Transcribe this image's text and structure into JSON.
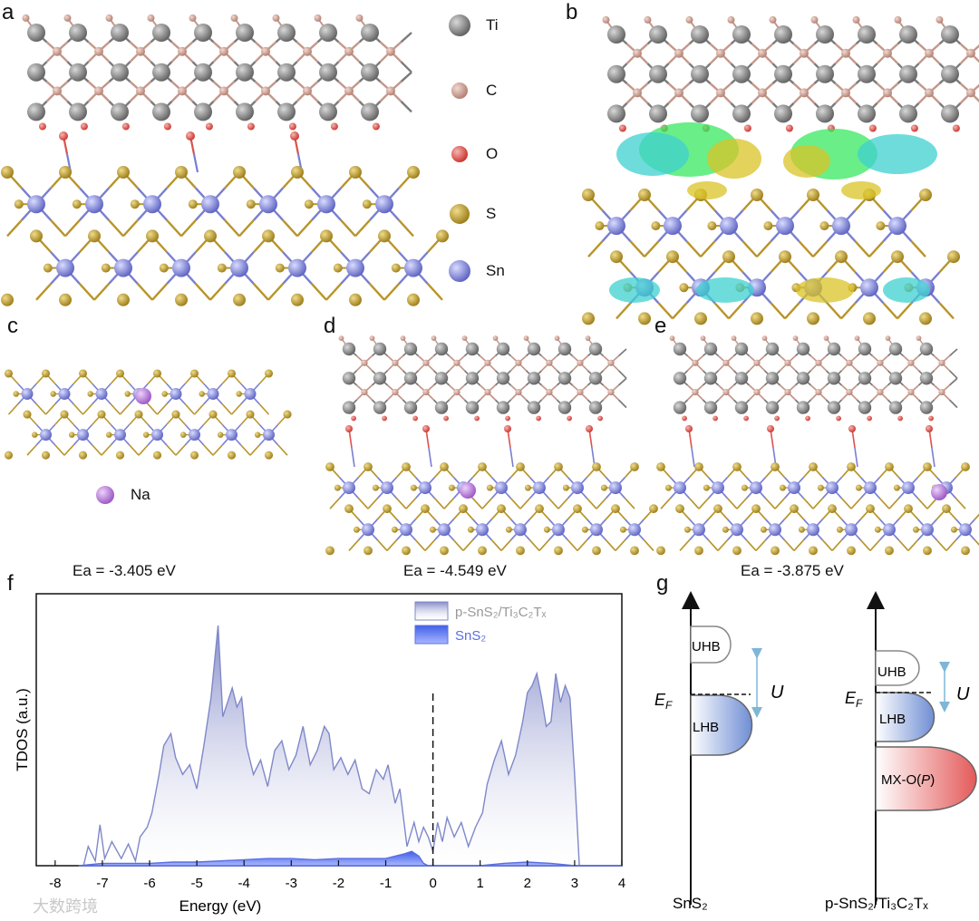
{
  "panels": {
    "a": "a",
    "b": "b",
    "c": "c",
    "d": "d",
    "e": "e",
    "f": "f",
    "g": "g"
  },
  "legend": {
    "ti": "Ti",
    "c": "C",
    "o": "O",
    "s": "S",
    "sn": "Sn",
    "na": "Na"
  },
  "colors": {
    "ti": "#7b7b7b",
    "c": "#c4978a",
    "o": "#d9534f",
    "s": "#b8952a",
    "sn": "#7a7fd0",
    "na": "#b57bd6",
    "iso_yellow": "#d9c326",
    "iso_cyan": "#3fd0d0",
    "iso_green": "#38e860",
    "tdos_line": "#7f88c9",
    "sns2_line": "#5a6fe0",
    "lhb": "#6f8ed4",
    "mxo": "#e45a5a"
  },
  "adsorption": {
    "c": "Ea = -3.405 eV",
    "d": "Ea = -4.549 eV",
    "e": "Ea = -3.875 eV"
  },
  "chart_data": {
    "type": "area",
    "title": "",
    "xlabel": "Energy (eV)",
    "ylabel": "TDOS (a.u.)",
    "xlim": [
      -8.4,
      4
    ],
    "ylim": [
      0,
      1
    ],
    "x_ticks": [
      "-8",
      "-7",
      "-6",
      "-5",
      "-4",
      "-3",
      "-2",
      "-1",
      "0",
      "1",
      "2",
      "3",
      "4"
    ],
    "fermi_level": 0,
    "legend_position": "top-right",
    "series": [
      {
        "name": "p-SnS2/Ti3C2Tx",
        "x": [
          -7.4,
          -7.3,
          -7.15,
          -7.05,
          -6.95,
          -6.8,
          -6.6,
          -6.45,
          -6.3,
          -6.2,
          -6.05,
          -5.95,
          -5.8,
          -5.7,
          -5.55,
          -5.45,
          -5.3,
          -5.15,
          -5.0,
          -4.85,
          -4.7,
          -4.55,
          -4.45,
          -4.35,
          -4.25,
          -4.15,
          -4.05,
          -3.95,
          -3.8,
          -3.65,
          -3.5,
          -3.35,
          -3.2,
          -3.05,
          -2.9,
          -2.75,
          -2.6,
          -2.45,
          -2.3,
          -2.2,
          -2.1,
          -1.95,
          -1.8,
          -1.65,
          -1.5,
          -1.35,
          -1.2,
          -1.05,
          -0.95,
          -0.8,
          -0.7,
          -0.55,
          -0.4,
          -0.3,
          -0.2,
          -0.1,
          0.0,
          0.1,
          0.2,
          0.3,
          0.45,
          0.6,
          0.75,
          0.9,
          1.05,
          1.15,
          1.3,
          1.45,
          1.6,
          1.75,
          1.9,
          2.0,
          2.1,
          2.2,
          2.3,
          2.4,
          2.5,
          2.6,
          2.7,
          2.8,
          2.9,
          3.0,
          3.1,
          3.3,
          4.0
        ],
        "values": [
          0.0,
          0.08,
          0.02,
          0.17,
          0.03,
          0.1,
          0.03,
          0.09,
          0.02,
          0.12,
          0.16,
          0.22,
          0.38,
          0.5,
          0.55,
          0.45,
          0.38,
          0.42,
          0.32,
          0.5,
          0.7,
          1.0,
          0.62,
          0.68,
          0.74,
          0.66,
          0.7,
          0.5,
          0.38,
          0.44,
          0.33,
          0.48,
          0.52,
          0.4,
          0.46,
          0.58,
          0.42,
          0.48,
          0.58,
          0.55,
          0.4,
          0.45,
          0.38,
          0.44,
          0.32,
          0.3,
          0.4,
          0.36,
          0.42,
          0.26,
          0.32,
          0.08,
          0.18,
          0.1,
          0.16,
          0.12,
          0.06,
          0.18,
          0.1,
          0.2,
          0.12,
          0.18,
          0.08,
          0.16,
          0.22,
          0.34,
          0.44,
          0.52,
          0.38,
          0.46,
          0.6,
          0.72,
          0.75,
          0.8,
          0.7,
          0.58,
          0.6,
          0.8,
          0.68,
          0.75,
          0.7,
          0.38,
          0.0,
          0.0,
          0.0
        ]
      },
      {
        "name": "SnS2",
        "x": [
          -7.5,
          -7.0,
          -6.5,
          -6.0,
          -5.5,
          -5.0,
          -4.5,
          -4.0,
          -3.5,
          -3.0,
          -2.5,
          -2.0,
          -1.5,
          -1.0,
          -0.8,
          -0.6,
          -0.45,
          -0.3,
          -0.2,
          -0.1,
          0.0,
          0.5,
          1.0,
          1.5,
          2.0,
          2.5,
          3.0,
          4.0
        ],
        "values": [
          0.0,
          0.01,
          0.01,
          0.01,
          0.015,
          0.015,
          0.02,
          0.025,
          0.03,
          0.03,
          0.025,
          0.03,
          0.03,
          0.03,
          0.04,
          0.05,
          0.06,
          0.04,
          0.01,
          0.0,
          0.0,
          0.0,
          0.0,
          0.01,
          0.015,
          0.01,
          0.0,
          0.0
        ]
      }
    ]
  },
  "chart_legend": {
    "p_sns2": "p-SnS₂/Ti₃C₂Tₓ",
    "sns2": "SnS₂"
  },
  "panel_g": {
    "uhb": "UHB",
    "lhb": "LHB",
    "mxo": "MX-O(P)",
    "ef": "EF",
    "u": "U",
    "left_label": "SnS₂",
    "right_label": "p-SnS₂/Ti₃C₂Tₓ"
  },
  "watermark": "大数跨境"
}
